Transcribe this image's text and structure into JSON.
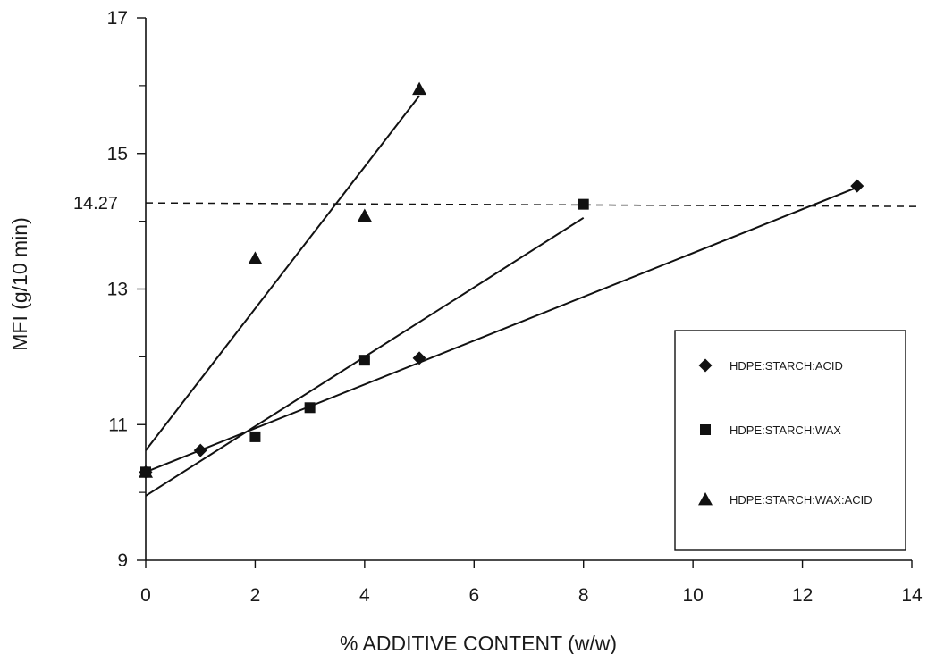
{
  "chart_data": {
    "type": "scatter",
    "title": "",
    "xlabel": "% ADDITIVE CONTENT (w/w)",
    "ylabel": "MFI (g/10 min)",
    "xlim": [
      0,
      14
    ],
    "ylim": [
      9,
      17
    ],
    "x_ticks": [
      0,
      2,
      4,
      6,
      8,
      10,
      12,
      14
    ],
    "y_ticks": [
      9,
      11,
      13,
      15,
      17
    ],
    "y_tick_labels": [
      "9",
      "11",
      "13",
      "15",
      "17"
    ],
    "x_tick_labels": [
      "0",
      "2",
      "4",
      "6",
      "8",
      "10",
      "12",
      "14"
    ],
    "reference_line": {
      "y": 14.27,
      "label": "14.27",
      "style": "dashed"
    },
    "legend_position": "right",
    "series": [
      {
        "name": "HDPE:STARCH:ACID",
        "marker": "diamond",
        "points": [
          [
            0,
            10.3
          ],
          [
            1,
            10.62
          ],
          [
            5,
            11.98
          ],
          [
            13,
            14.52
          ]
        ],
        "fit_line": [
          [
            0,
            10.3
          ],
          [
            13,
            14.5
          ]
        ]
      },
      {
        "name": "HDPE:STARCH:WAX",
        "marker": "square",
        "points": [
          [
            0,
            10.3
          ],
          [
            2,
            10.82
          ],
          [
            3,
            11.25
          ],
          [
            4,
            11.95
          ],
          [
            8,
            14.25
          ]
        ],
        "fit_line": [
          [
            0,
            9.95
          ],
          [
            8,
            14.05
          ]
        ]
      },
      {
        "name": "HDPE:STARCH:WAX:ACID",
        "marker": "triangle",
        "points": [
          [
            0,
            10.3
          ],
          [
            2,
            13.45
          ],
          [
            4,
            14.08
          ],
          [
            5,
            15.95
          ]
        ],
        "fit_line": [
          [
            0,
            10.62
          ],
          [
            5,
            15.85
          ]
        ]
      }
    ]
  }
}
